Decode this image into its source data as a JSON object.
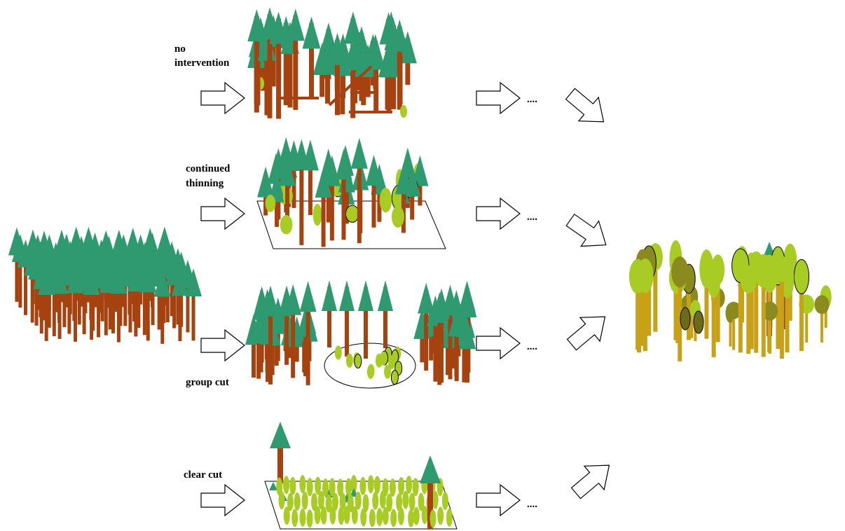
{
  "scenarios": [
    {
      "label_lines": [
        "no",
        "intervention"
      ],
      "continuation": "...."
    },
    {
      "label_lines": [
        "continued",
        "thinning"
      ],
      "continuation": "...."
    },
    {
      "label_lines": [
        "group cut"
      ],
      "continuation": "...."
    },
    {
      "label_lines": [
        "clear cut"
      ],
      "continuation": "...."
    }
  ]
}
